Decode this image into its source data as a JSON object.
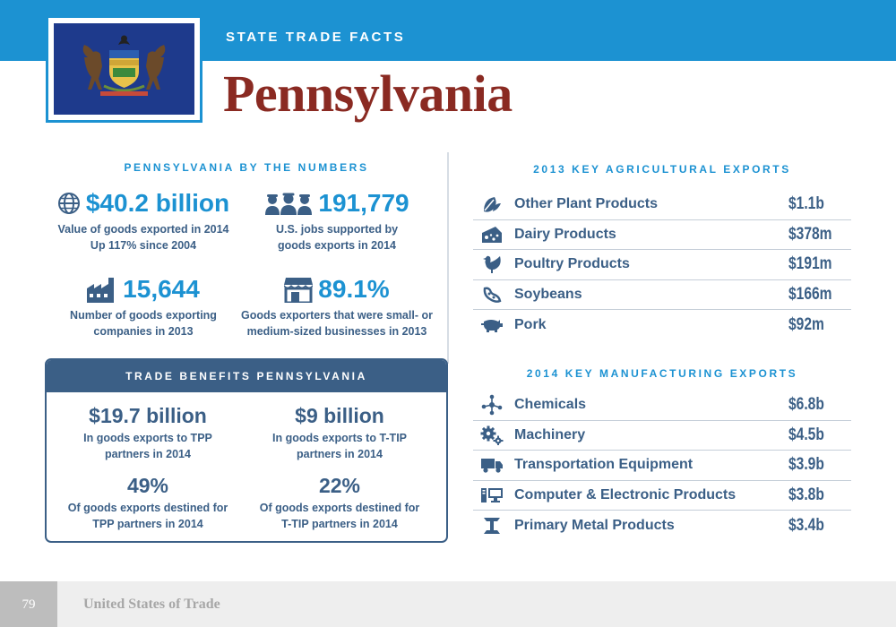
{
  "header": {
    "kicker": "STATE TRADE FACTS",
    "title": "Pennsylvania",
    "flag_icon": "pennsylvania-flag",
    "colors": {
      "header_blue": "#1c92d2",
      "title_red": "#8a2a22",
      "navy": "#3b5f86",
      "flag_blue": "#1e3a8c"
    }
  },
  "by_numbers": {
    "heading": "PENNSYLVANIA BY THE NUMBERS",
    "stats": [
      {
        "icon": "globe-icon",
        "value": "$40.2 billion",
        "caption_line1": "Value of goods exported in 2014",
        "caption_line2": "Up 117% since 2004"
      },
      {
        "icon": "workers-icon",
        "value": "191,779",
        "caption_line1": "U.S. jobs supported by",
        "caption_line2": "goods exports in 2014"
      },
      {
        "icon": "factory-icon",
        "value": "15,644",
        "caption_line1": "Number of goods exporting",
        "caption_line2": "companies in 2013"
      },
      {
        "icon": "storefront-icon",
        "value": "89.1%",
        "caption_line1": "Goods exporters that were small- or",
        "caption_line2": "medium-sized businesses in 2013"
      }
    ]
  },
  "trade_benefits": {
    "heading": "TRADE BENEFITS PENNSYLVANIA",
    "stats": [
      {
        "value": "$19.7 billion",
        "caption_line1": "In goods exports to TPP",
        "caption_line2": "partners in 2014"
      },
      {
        "value": "$9 billion",
        "caption_line1": "In goods exports to T-TIP",
        "caption_line2": "partners in 2014"
      },
      {
        "value": "49%",
        "caption_line1": "Of goods exports destined for",
        "caption_line2": "TPP partners in 2014"
      },
      {
        "value": "22%",
        "caption_line1": "Of goods exports destined for",
        "caption_line2": "T-TIP partners in 2014"
      }
    ]
  },
  "agricultural": {
    "heading": "2013 KEY AGRICULTURAL EXPORTS",
    "rows": [
      {
        "icon": "leaves-icon",
        "label": "Other Plant Products",
        "value": "$1.1b"
      },
      {
        "icon": "cheese-icon",
        "label": "Dairy Products",
        "value": "$378m"
      },
      {
        "icon": "chicken-icon",
        "label": "Poultry Products",
        "value": "$191m"
      },
      {
        "icon": "soybean-icon",
        "label": "Soybeans",
        "value": "$166m"
      },
      {
        "icon": "pig-icon",
        "label": "Pork",
        "value": "$92m"
      }
    ]
  },
  "manufacturing": {
    "heading": "2014 KEY MANUFACTURING EXPORTS",
    "rows": [
      {
        "icon": "molecule-icon",
        "label": "Chemicals",
        "value": "$6.8b"
      },
      {
        "icon": "gears-icon",
        "label": "Machinery",
        "value": "$4.5b"
      },
      {
        "icon": "truck-icon",
        "label": "Transportation Equipment",
        "value": "$3.9b"
      },
      {
        "icon": "computer-icon",
        "label": "Computer & Electronic Products",
        "value": "$3.8b"
      },
      {
        "icon": "ibeam-icon",
        "label": "Primary Metal Products",
        "value": "$3.4b"
      }
    ]
  },
  "footer": {
    "page_number": "79",
    "publication": "United States of Trade"
  }
}
